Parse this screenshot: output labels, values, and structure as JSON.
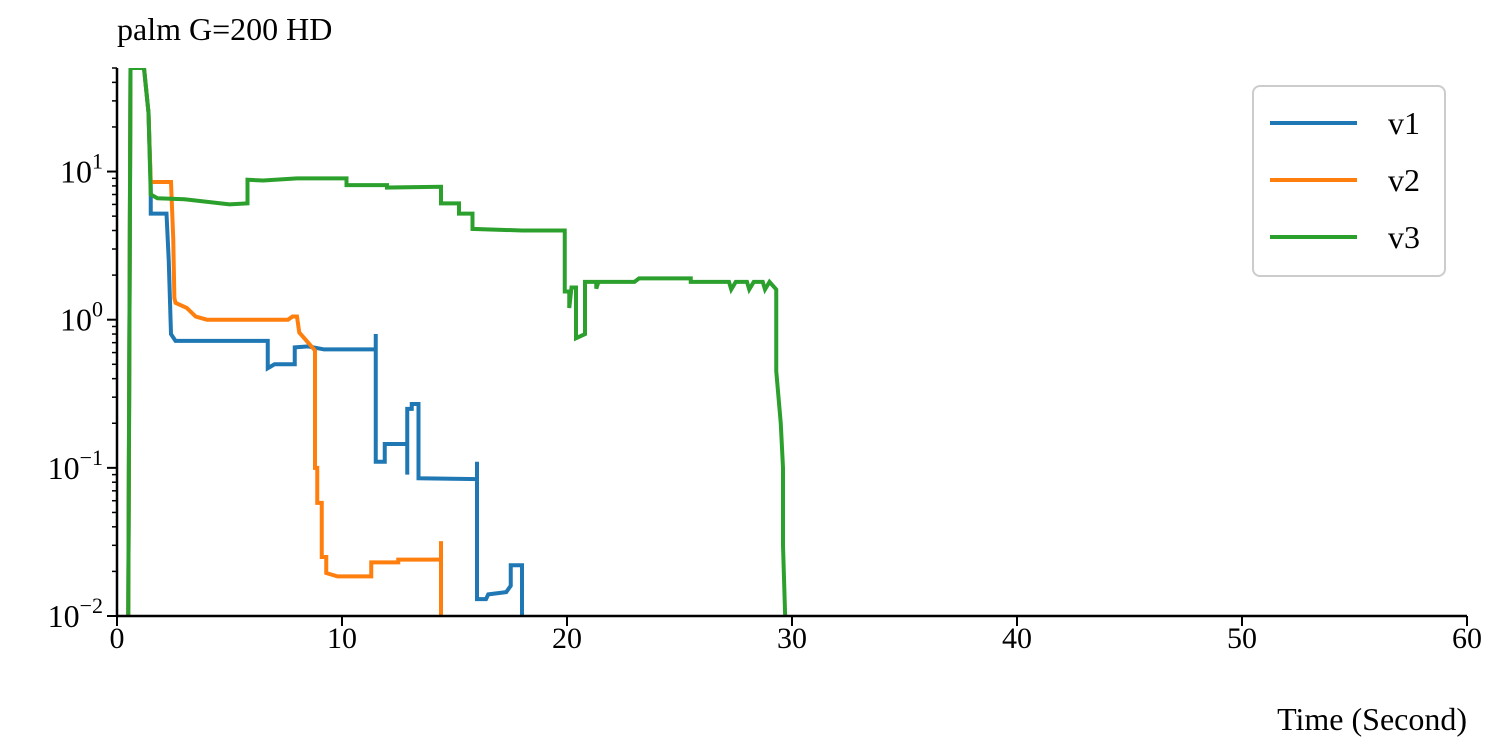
{
  "chart_data": {
    "type": "line",
    "title": "palm G=200 HD",
    "xlabel": "Time (Second)",
    "ylabel": "",
    "xlim": [
      0,
      60
    ],
    "ylim": [
      0.01,
      50
    ],
    "yscale": "log",
    "grid": false,
    "legend_position": "top-right",
    "xticks": [
      0,
      10,
      20,
      30,
      40,
      50,
      60
    ],
    "xtick_labels": [
      "0",
      "10",
      "20",
      "30",
      "40",
      "50",
      "60"
    ],
    "yticks": [
      {
        "value": 10,
        "base": "10",
        "exp": "1"
      },
      {
        "value": 1,
        "base": "10",
        "exp": "0"
      },
      {
        "value": 0.1,
        "base": "10",
        "exp": "−1"
      },
      {
        "value": 0.01,
        "base": "10",
        "exp": "−2"
      }
    ],
    "series": [
      {
        "name": "v1",
        "color": "#1f77b4",
        "points": [
          [
            0.5,
            0.01
          ],
          [
            0.6,
            50
          ],
          [
            1.2,
            50
          ],
          [
            1.4,
            25
          ],
          [
            1.5,
            8
          ],
          [
            1.5,
            5.2
          ],
          [
            2.2,
            5.2
          ],
          [
            2.3,
            2.5
          ],
          [
            2.4,
            0.8
          ],
          [
            2.6,
            0.72
          ],
          [
            6.7,
            0.72
          ],
          [
            6.7,
            0.47
          ],
          [
            7.0,
            0.5
          ],
          [
            7.9,
            0.5
          ],
          [
            7.9,
            0.65
          ],
          [
            8.5,
            0.66
          ],
          [
            9.2,
            0.63
          ],
          [
            11.5,
            0.63
          ],
          [
            11.5,
            0.8
          ],
          [
            11.5,
            0.11
          ],
          [
            11.9,
            0.11
          ],
          [
            11.9,
            0.145
          ],
          [
            12.9,
            0.145
          ],
          [
            12.9,
            0.09
          ],
          [
            12.9,
            0.25
          ],
          [
            13.1,
            0.25
          ],
          [
            13.1,
            0.27
          ],
          [
            13.4,
            0.27
          ],
          [
            13.4,
            0.085
          ],
          [
            16.0,
            0.084
          ],
          [
            16.0,
            0.11
          ],
          [
            16.0,
            0.013
          ],
          [
            16.4,
            0.013
          ],
          [
            16.5,
            0.014
          ],
          [
            17.3,
            0.0145
          ],
          [
            17.5,
            0.016
          ],
          [
            17.5,
            0.022
          ],
          [
            18.0,
            0.022
          ],
          [
            18.0,
            0.0095
          ]
        ]
      },
      {
        "name": "v2",
        "color": "#ff7f0e",
        "points": [
          [
            0.5,
            0.01
          ],
          [
            0.6,
            50
          ],
          [
            1.2,
            50
          ],
          [
            1.4,
            25
          ],
          [
            1.5,
            8.5
          ],
          [
            2.4,
            8.5
          ],
          [
            2.5,
            3.5
          ],
          [
            2.55,
            1.4
          ],
          [
            2.6,
            1.3
          ],
          [
            3.1,
            1.2
          ],
          [
            3.5,
            1.05
          ],
          [
            4.0,
            1.0
          ],
          [
            7.6,
            1.0
          ],
          [
            7.8,
            1.05
          ],
          [
            8.0,
            1.05
          ],
          [
            8.1,
            0.82
          ],
          [
            8.8,
            0.62
          ],
          [
            8.8,
            0.1
          ],
          [
            8.9,
            0.1
          ],
          [
            8.9,
            0.058
          ],
          [
            9.1,
            0.058
          ],
          [
            9.1,
            0.025
          ],
          [
            9.3,
            0.025
          ],
          [
            9.3,
            0.0195
          ],
          [
            9.8,
            0.0185
          ],
          [
            11.3,
            0.0185
          ],
          [
            11.3,
            0.023
          ],
          [
            12.5,
            0.023
          ],
          [
            12.5,
            0.024
          ],
          [
            14.4,
            0.024
          ],
          [
            14.4,
            0.032
          ],
          [
            14.4,
            0.0095
          ]
        ]
      },
      {
        "name": "v3",
        "color": "#2ca02c",
        "points": [
          [
            0.5,
            0.01
          ],
          [
            0.6,
            50
          ],
          [
            1.2,
            50
          ],
          [
            1.4,
            25
          ],
          [
            1.5,
            7
          ],
          [
            1.8,
            6.6
          ],
          [
            3.0,
            6.5
          ],
          [
            5.0,
            6.0
          ],
          [
            5.8,
            6.1
          ],
          [
            5.8,
            8.8
          ],
          [
            6.5,
            8.7
          ],
          [
            8.0,
            9.0
          ],
          [
            10.2,
            9.0
          ],
          [
            10.2,
            8.1
          ],
          [
            12.0,
            8.1
          ],
          [
            12.0,
            7.8
          ],
          [
            14.4,
            7.9
          ],
          [
            14.4,
            6.1
          ],
          [
            15.2,
            6.1
          ],
          [
            15.2,
            5.2
          ],
          [
            15.8,
            5.2
          ],
          [
            15.8,
            4.1
          ],
          [
            18.0,
            4.0
          ],
          [
            19.9,
            4.0
          ],
          [
            19.9,
            1.55
          ],
          [
            20.1,
            1.55
          ],
          [
            20.1,
            1.2
          ],
          [
            20.2,
            1.65
          ],
          [
            20.4,
            1.65
          ],
          [
            20.4,
            0.75
          ],
          [
            20.8,
            0.8
          ],
          [
            20.8,
            1.8
          ],
          [
            21.3,
            1.8
          ],
          [
            21.3,
            1.62
          ],
          [
            21.4,
            1.8
          ],
          [
            23.0,
            1.8
          ],
          [
            23.2,
            1.9
          ],
          [
            25.5,
            1.9
          ],
          [
            25.5,
            1.8
          ],
          [
            27.2,
            1.8
          ],
          [
            27.3,
            1.6
          ],
          [
            27.5,
            1.8
          ],
          [
            28.0,
            1.8
          ],
          [
            28.1,
            1.6
          ],
          [
            28.3,
            1.8
          ],
          [
            28.7,
            1.8
          ],
          [
            28.8,
            1.6
          ],
          [
            29.0,
            1.8
          ],
          [
            29.3,
            1.6
          ],
          [
            29.3,
            0.45
          ],
          [
            29.5,
            0.2
          ],
          [
            29.6,
            0.1
          ],
          [
            29.6,
            0.03
          ],
          [
            29.7,
            0.0095
          ]
        ]
      }
    ]
  }
}
